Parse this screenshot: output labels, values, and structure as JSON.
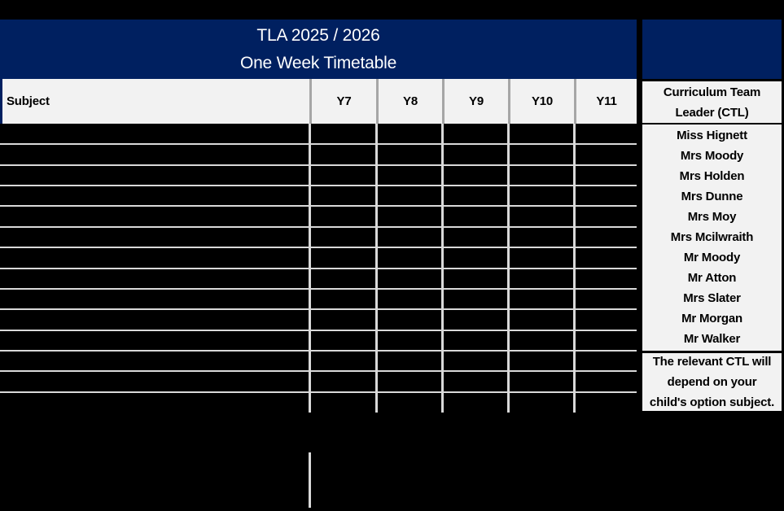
{
  "title": {
    "line1": "TLA 2025 / 2026",
    "line2": "One Week Timetable"
  },
  "table": {
    "columns": [
      "Subject",
      "Y7",
      "Y8",
      "Y9",
      "Y10",
      "Y11"
    ],
    "body_row_count": 14,
    "body_cells_empty": true
  },
  "ctl": {
    "header_line1": "Curriculum Team",
    "header_line2": "Leader (CTL)",
    "names": [
      "Miss Hignett",
      "Mrs Moody",
      "Mrs Holden",
      "Mrs Dunne",
      "Mrs Moy",
      "Mrs Mcilwraith",
      "Mr Moody",
      "Mr Atton",
      "Mrs Slater",
      "Mr Morgan",
      "Mr Walker"
    ],
    "note_lines": [
      "The relevant CTL will",
      "depend on your",
      "child's option subject."
    ]
  },
  "colors": {
    "navy": "#002060",
    "cell_bg": "#f2f2f2",
    "gridline": "#d9d9d9",
    "header_divider": "#a6a6a6",
    "background": "#000000",
    "title_text": "#ffffff",
    "text": "#000000"
  }
}
